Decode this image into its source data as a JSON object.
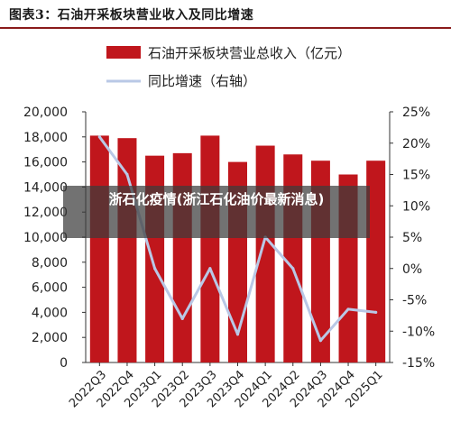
{
  "header": {
    "title": "图表3：石油开采板块营业收入及同比增速"
  },
  "overlay": {
    "text": "浙石化疫情(浙江石化油价最新消息)"
  },
  "colors": {
    "bar": "#c0161c",
    "line": "#b9c8e6",
    "title_rule": "#8a1b1b"
  },
  "chart_data": {
    "type": "bar",
    "categories": [
      "2022Q3",
      "2022Q4",
      "2023Q1",
      "2023Q2",
      "2023Q3",
      "2023Q4",
      "2024Q1",
      "2024Q2",
      "2024Q3",
      "2024Q4",
      "2025Q1"
    ],
    "series": [
      {
        "name": "石油开采板块营业总收入（亿元）",
        "type": "bar",
        "axis": "left",
        "values": [
          18100,
          17900,
          16500,
          16700,
          18100,
          16000,
          17300,
          16600,
          16100,
          15000,
          16100
        ]
      },
      {
        "name": "同比增速（右轴）",
        "type": "line",
        "axis": "right",
        "values": [
          21,
          15,
          0,
          -8,
          0,
          -10.5,
          5,
          0,
          -11.5,
          -6.5,
          -7
        ]
      }
    ],
    "y_left": {
      "min": 0,
      "max": 20000,
      "ticks": [
        "0",
        "2,000",
        "4,000",
        "6,000",
        "8,000",
        "10,000",
        "12,000",
        "14,000",
        "16,000",
        "18,000",
        "20,000"
      ]
    },
    "y_right": {
      "min": -15,
      "max": 25,
      "ticks": [
        "-15%",
        "-10%",
        "-5%",
        "0%",
        "5%",
        "10%",
        "15%",
        "20%",
        "25%"
      ]
    },
    "legend_position": "top"
  }
}
